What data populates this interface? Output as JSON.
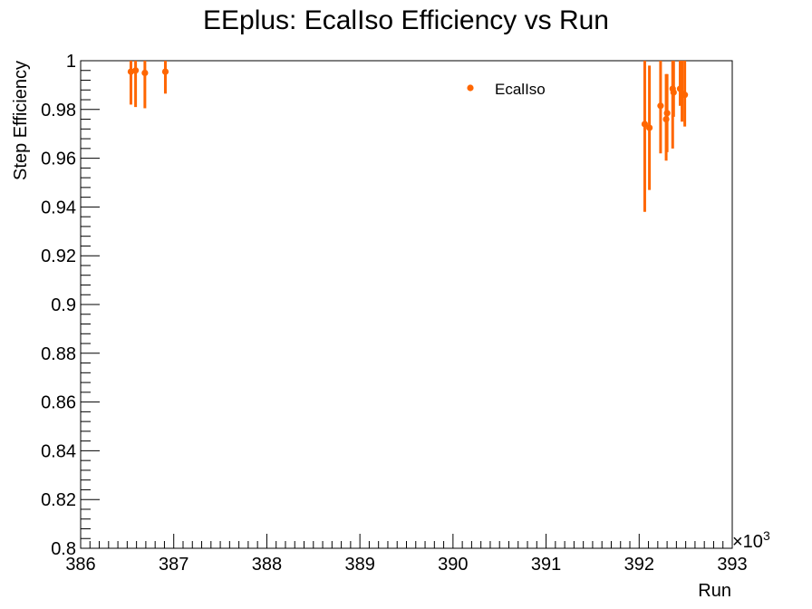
{
  "chart_data": {
    "type": "scatter",
    "title": "EEplus: EcalIso Efficiency vs Run",
    "xlabel": "Run",
    "ylabel": "Step Efficiency",
    "x_multiplier_label": "×10",
    "x_multiplier_exponent": "3",
    "xlim": [
      386,
      393
    ],
    "ylim": [
      0.8,
      1.0
    ],
    "x_ticks": [
      386,
      387,
      388,
      389,
      390,
      391,
      392,
      393
    ],
    "x_tick_labels": [
      "386",
      "387",
      "388",
      "389",
      "390",
      "391",
      "392",
      "393"
    ],
    "y_ticks": [
      0.8,
      0.82,
      0.84,
      0.86,
      0.88,
      0.9,
      0.92,
      0.94,
      0.96,
      0.98,
      1.0
    ],
    "y_tick_labels": [
      "0.8",
      "0.82",
      "0.84",
      "0.86",
      "0.88",
      "0.9",
      "0.92",
      "0.94",
      "0.96",
      "0.98",
      "1"
    ],
    "grid": false,
    "legend_position": "top-right",
    "series": [
      {
        "name": "EcalIso",
        "color": "#ff6600",
        "points": [
          {
            "x": 386.54,
            "y": 0.9955,
            "err_low": 0.0135,
            "err_high": 0.0045
          },
          {
            "x": 386.59,
            "y": 0.996,
            "err_low": 0.015,
            "err_high": 0.004
          },
          {
            "x": 386.69,
            "y": 0.995,
            "err_low": 0.0145,
            "err_high": 0.005
          },
          {
            "x": 386.91,
            "y": 0.9955,
            "err_low": 0.009,
            "err_high": 0.0045
          },
          {
            "x": 392.06,
            "y": 0.974,
            "err_low": 0.036,
            "err_high": 0.026
          },
          {
            "x": 392.11,
            "y": 0.9725,
            "err_low": 0.0255,
            "err_high": 0.0255
          },
          {
            "x": 392.23,
            "y": 0.9815,
            "err_low": 0.0195,
            "err_high": 0.0185
          },
          {
            "x": 392.29,
            "y": 0.976,
            "err_low": 0.017,
            "err_high": 0.0185
          },
          {
            "x": 392.3,
            "y": 0.9785,
            "err_low": 0.016,
            "err_high": 0.016
          },
          {
            "x": 392.36,
            "y": 0.9885,
            "err_low": 0.0245,
            "err_high": 0.0115
          },
          {
            "x": 392.37,
            "y": 0.987,
            "err_low": 0.01,
            "err_high": 0.013
          },
          {
            "x": 392.44,
            "y": 0.9885,
            "err_low": 0.007,
            "err_high": 0.0115
          },
          {
            "x": 392.46,
            "y": 0.9865,
            "err_low": 0.0115,
            "err_high": 0.0135
          },
          {
            "x": 392.49,
            "y": 0.986,
            "err_low": 0.013,
            "err_high": 0.014
          }
        ]
      }
    ]
  }
}
